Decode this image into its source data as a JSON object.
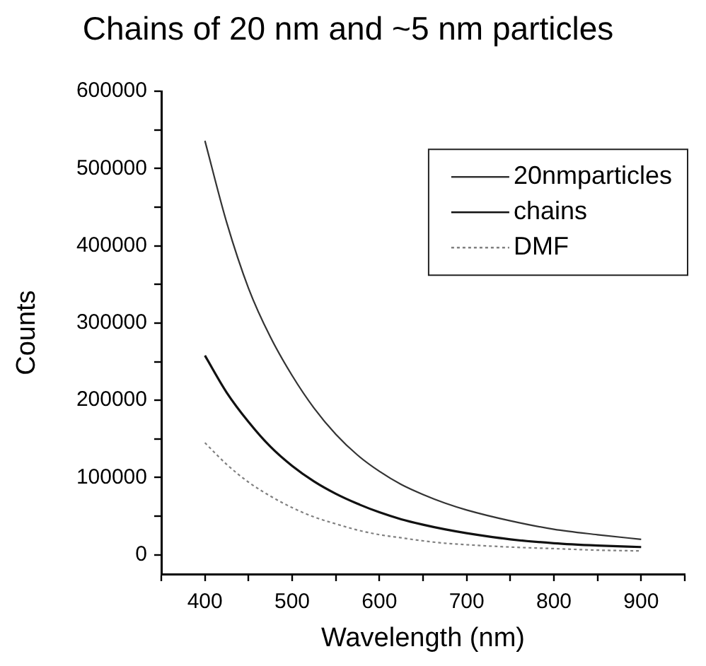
{
  "chart_data": {
    "type": "line",
    "title": "Chains of 20 nm and ~5 nm particles",
    "xlabel": "Wavelength (nm)",
    "ylabel": "Counts",
    "x": [
      400,
      425,
      450,
      475,
      500,
      525,
      550,
      575,
      600,
      625,
      650,
      675,
      700,
      750,
      800,
      850,
      900
    ],
    "series": [
      {
        "name": "20nmparticles",
        "color": "#333333",
        "values": [
          536000,
          430000,
          345000,
          282000,
          232000,
          190000,
          156000,
          129000,
          108000,
          91000,
          78000,
          67000,
          58000,
          44000,
          33000,
          26000,
          20000
        ]
      },
      {
        "name": "chains",
        "color": "#111111",
        "values": [
          258000,
          210000,
          172000,
          140000,
          115000,
          95000,
          79000,
          66000,
          55000,
          46000,
          39000,
          33000,
          28000,
          20000,
          15000,
          12000,
          10000
        ]
      },
      {
        "name": "DMF",
        "color": "#808080",
        "line_style": "dotted",
        "values": [
          145000,
          117000,
          94000,
          76000,
          61000,
          49000,
          40000,
          32000,
          26000,
          22000,
          18000,
          15000,
          13000,
          10000,
          8000,
          6000,
          5000
        ]
      }
    ],
    "xlim": [
      350,
      950
    ],
    "xticks": [
      {
        "value": 350,
        "label": null
      },
      400,
      {
        "value": 450,
        "label": null
      },
      500,
      {
        "value": 550,
        "label": null
      },
      600,
      {
        "value": 650,
        "label": null
      },
      700,
      {
        "value": 750,
        "label": null
      },
      800,
      {
        "value": 850,
        "label": null
      },
      900,
      {
        "value": 950,
        "label": null
      }
    ],
    "ylim": [
      -25000,
      600000
    ],
    "yticks": [
      0,
      {
        "value": 50000,
        "label": null
      },
      100000,
      {
        "value": 150000,
        "label": null
      },
      200000,
      {
        "value": 250000,
        "label": null
      },
      300000,
      {
        "value": 350000,
        "label": null
      },
      400000,
      {
        "value": 450000,
        "label": null
      },
      500000,
      {
        "value": 550000,
        "label": null
      },
      600000
    ],
    "grid": false,
    "legend": "top right",
    "marker": "none",
    "line_style": "solid"
  }
}
